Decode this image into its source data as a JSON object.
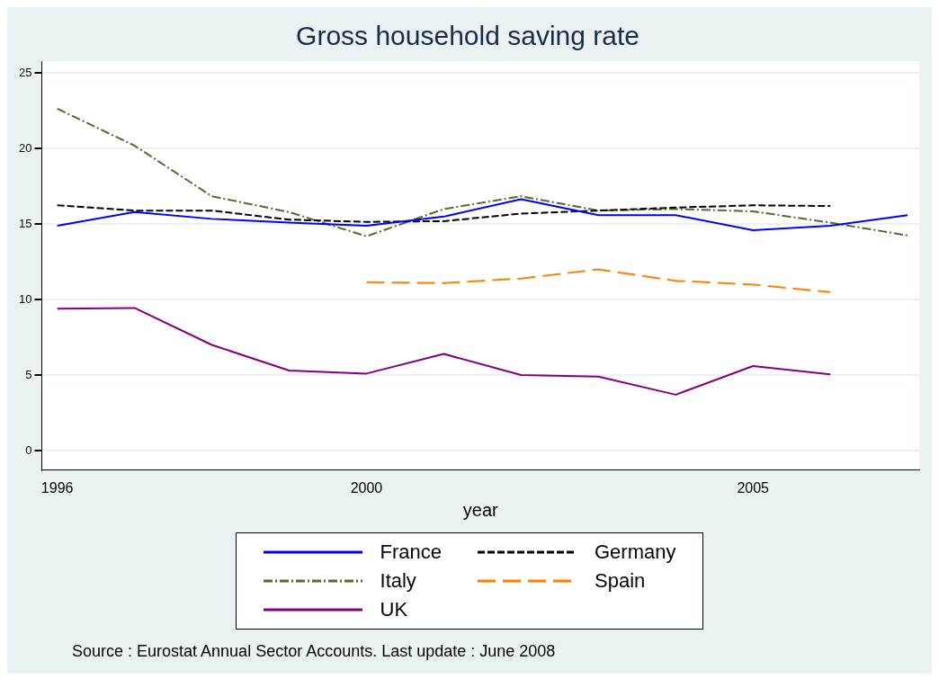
{
  "chart_data": {
    "type": "line",
    "title": "Gross household saving rate",
    "xlabel": "year",
    "annotations": [
      "Source : Eurostat Annual Sector Accounts. Last update : June 2008"
    ],
    "x": [
      1996,
      1997,
      1998,
      1999,
      2000,
      2001,
      2002,
      2003,
      2004,
      2005,
      2006,
      2007
    ],
    "xlim": [
      1995.8,
      2007.15
    ],
    "xticks": [
      1996,
      2000,
      2005
    ],
    "ylim": [
      -1.3,
      25.8
    ],
    "yticks": [
      0,
      5,
      10,
      15,
      20,
      25
    ],
    "grid": "y",
    "legend": "bottom",
    "marker": "none",
    "series": [
      {
        "name": "France",
        "color": "#0000ff",
        "line_style": "solid",
        "values": [
          14.9,
          15.8,
          15.35,
          15.1,
          14.9,
          15.5,
          16.65,
          15.6,
          15.6,
          14.6,
          14.9,
          15.6
        ]
      },
      {
        "name": "Germany",
        "color": "#000000",
        "line_style": "dashed",
        "values": [
          16.25,
          15.9,
          15.9,
          15.3,
          15.15,
          15.2,
          15.7,
          15.9,
          16.1,
          16.25,
          16.2,
          null
        ]
      },
      {
        "name": "Italy",
        "color": "#556b2f",
        "line_style": "dashdot",
        "values": [
          22.65,
          20.2,
          16.85,
          15.8,
          14.2,
          16.0,
          16.85,
          15.9,
          16.0,
          15.85,
          15.1,
          14.25
        ]
      },
      {
        "name": "Spain",
        "color": "#ff8000",
        "line_style": "longdash",
        "values": [
          null,
          null,
          null,
          null,
          11.15,
          11.1,
          11.4,
          12.0,
          11.25,
          11.0,
          10.5,
          null
        ]
      },
      {
        "name": "UK",
        "color": "#800080",
        "line_style": "solid",
        "values": [
          9.4,
          9.45,
          7.0,
          5.3,
          5.1,
          6.4,
          5.0,
          4.9,
          3.7,
          5.6,
          5.05,
          null
        ]
      }
    ]
  }
}
